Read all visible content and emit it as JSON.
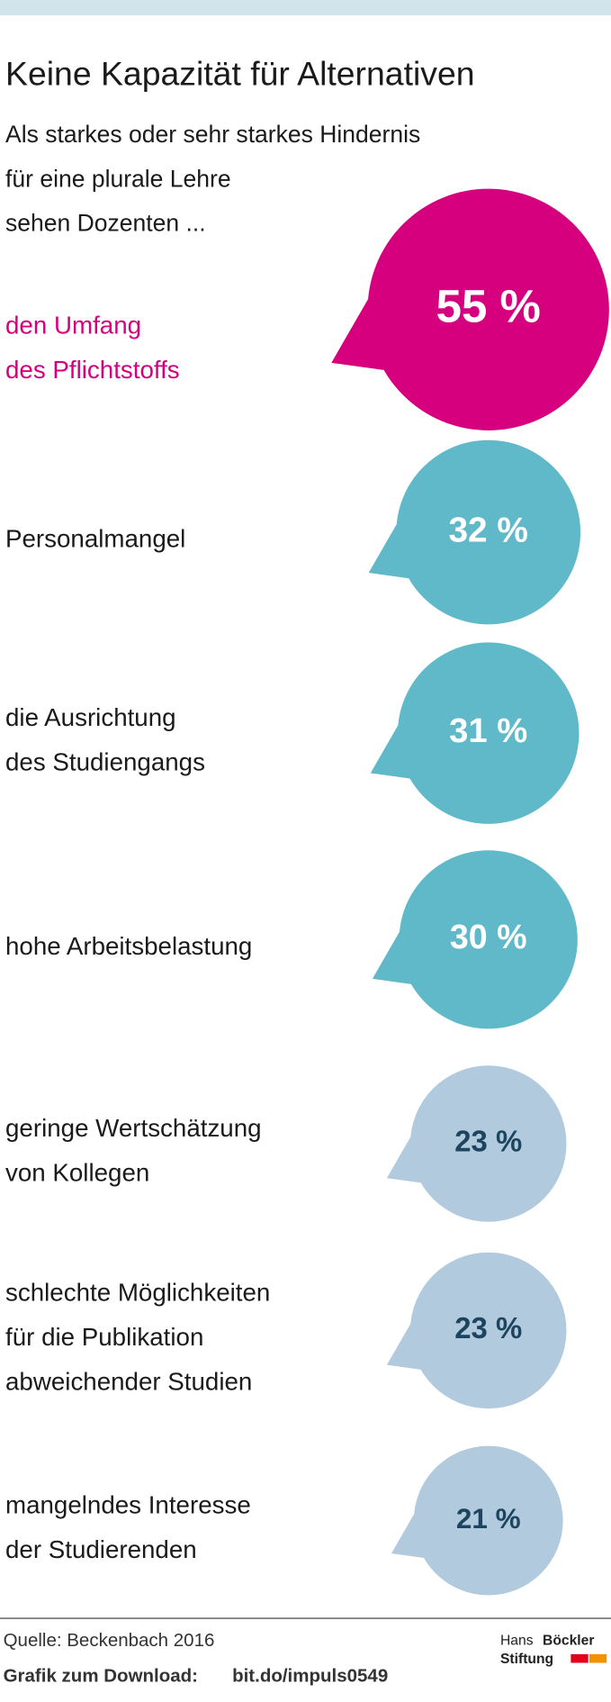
{
  "chart_data": {
    "type": "bubble",
    "title": "Keine Kapazität für Alternativen",
    "subtitle": "Als starkes oder sehr starkes Hindernis\nfür eine plurale Lehre\nsehen Dozenten ...",
    "categories": [
      "den Umfang\ndes Pflichtstoffs",
      "Personalmangel",
      "die Ausrichtung\ndes Studiengangs",
      "hohe Arbeitsbelastung",
      "geringe Wertschätzung\nvon Kollegen",
      "schlechte Möglichkeiten\nfür die Publikation\nabweichender Studien",
      "mangelndes Interesse\nder Studierenden"
    ],
    "values": [
      55,
      32,
      31,
      30,
      23,
      23,
      21
    ],
    "value_labels": [
      "55 %",
      "32 %",
      "31 %",
      "30 %",
      "23 %",
      "23 %",
      "21 %"
    ],
    "colors": [
      "#d6007e",
      "#5fb9c8",
      "#5fb9c8",
      "#5fb9c8",
      "#b2cadd",
      "#b2cadd",
      "#b2cadd"
    ],
    "value_label_colors": [
      "#ffffff",
      "#ffffff",
      "#ffffff",
      "#ffffff",
      "#1d4560",
      "#1d4560",
      "#1d4560"
    ],
    "category_colors": [
      "#d6007e",
      "#1a1a1a",
      "#1a1a1a",
      "#1a1a1a",
      "#1a1a1a",
      "#1a1a1a",
      "#1a1a1a"
    ],
    "source": "Quelle: Beckenbach 2016",
    "download_label": "Grafik zum Download:",
    "download_url": "bit.do/impuls0549",
    "logo": [
      "Hans",
      "Böckler",
      "Stiftung"
    ]
  }
}
